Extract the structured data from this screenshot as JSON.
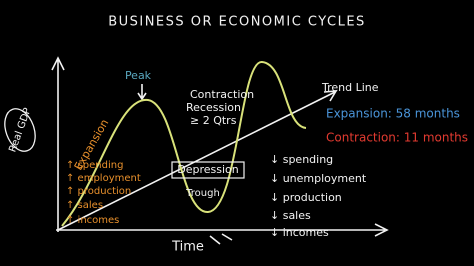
{
  "title": "BUSINESS OR ECONOMIC CYCLES",
  "axes": {
    "y": "Real GDP",
    "x": "Time"
  },
  "labels": {
    "peak": "Peak",
    "contraction": [
      "Contraction",
      "Recession",
      "≥ 2 Qtrs"
    ],
    "depression": "Depression",
    "trough": "Trough",
    "trend_line": "Trend Line"
  },
  "stats": {
    "expansion": "Expansion: 58 months",
    "contraction": "Contraction: 11 months"
  },
  "expansion_effects": {
    "title": "Expansion",
    "items": [
      "↑ spending",
      "↑ employment",
      "↑ production",
      "↑ sales",
      "↑ incomes"
    ]
  },
  "contraction_effects": {
    "items": [
      "↓ spending",
      "↓ unemployment",
      "↓ production",
      "↓ sales",
      "↓ incomes"
    ]
  }
}
